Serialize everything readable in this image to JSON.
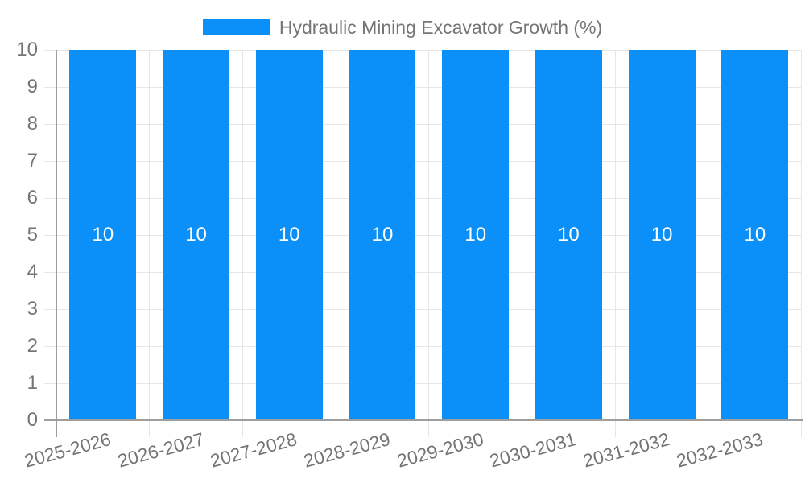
{
  "chart_data": {
    "type": "bar",
    "categories": [
      "2025-2026",
      "2026-2027",
      "2027-2028",
      "2028-2029",
      "2029-2030",
      "2030-2031",
      "2031-2032",
      "2032-2033"
    ],
    "series": [
      {
        "name": "Hydraulic Mining Excavator Growth (%)",
        "values": [
          10,
          10,
          10,
          10,
          10,
          10,
          10,
          10
        ],
        "data_labels": [
          "10",
          "10",
          "10",
          "10",
          "10",
          "10",
          "10",
          "10"
        ]
      }
    ],
    "ylim": [
      0,
      10
    ],
    "yticks": [
      0,
      1,
      2,
      3,
      4,
      5,
      6,
      7,
      8,
      9,
      10
    ],
    "grid": true,
    "legend_position": "top",
    "colors": {
      "bar": "#0a90f8",
      "axis_line": "#9e9e9e",
      "gridline": "#e6e6e6",
      "tick_text": "#757575",
      "bar_label_text": "#ffffff",
      "background": "#ffffff"
    }
  }
}
